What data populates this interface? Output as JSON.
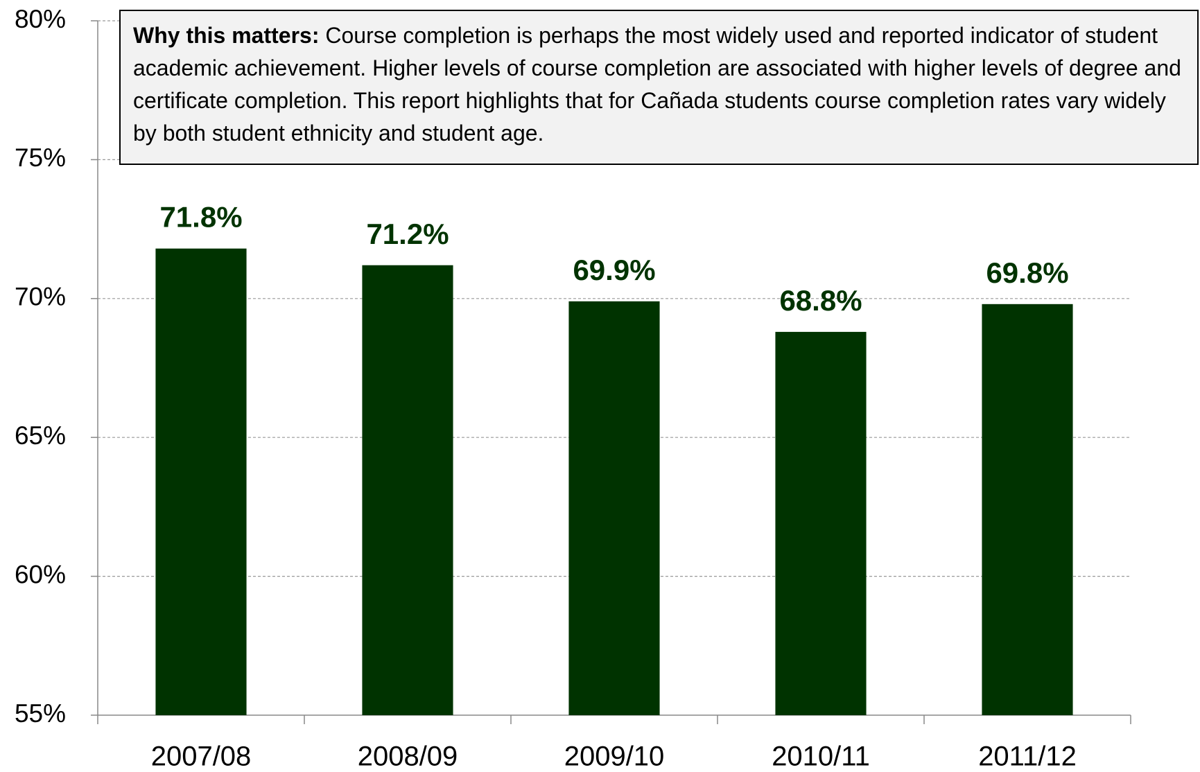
{
  "chart_data": {
    "type": "bar",
    "annotation": {
      "label": "Why this matters:",
      "text": "Course completion is perhaps the most widely used and reported  indicator of student academic achievement. Higher levels of course completion are associated with higher levels of degree and certificate completion. This report highlights that for Cañada students course completion rates vary widely by both student ethnicity and student age."
    },
    "categories": [
      "2007/08",
      "2008/09",
      "2009/10",
      "2010/11",
      "2011/12"
    ],
    "values": [
      71.8,
      71.2,
      69.9,
      68.8,
      69.8
    ],
    "value_labels": [
      "71.8%",
      "71.2%",
      "69.9%",
      "68.8%",
      "69.8%"
    ],
    "color": "#003300",
    "ylim": [
      55,
      80
    ],
    "yticks": [
      {
        "value": 55,
        "label": "55%"
      },
      {
        "value": 60,
        "label": "60%"
      },
      {
        "value": 65,
        "label": "65%"
      },
      {
        "value": 70,
        "label": "70%"
      },
      {
        "value": 75,
        "label": "75%"
      },
      {
        "value": 80,
        "label": "80%"
      }
    ],
    "grid": true
  }
}
